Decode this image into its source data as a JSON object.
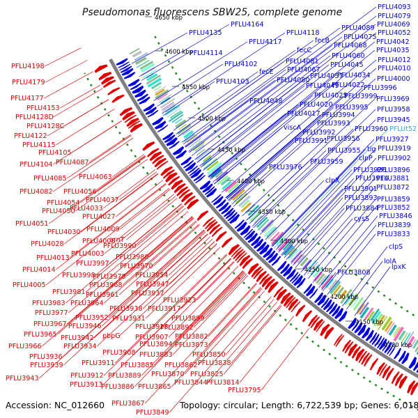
{
  "title": "Pseudomonas fluorescens SBW25, complete genome",
  "footer": {
    "accession": "Accession: NC_012660",
    "summary": "Topology: circular; Length: 6,722,539 bp; Genes: 6,018"
  },
  "colors": {
    "forward_strand": "#e00000",
    "reverse_strand": "#0000dd",
    "trna_label": "#33aadd",
    "backbone": "#808080",
    "dotted_ring": "#228822"
  },
  "ruler_ticks": [
    "4650 kbp",
    "4600 kbp",
    "4550 kbp",
    "4500 kbp",
    "4450 kbp",
    "4400 kbp",
    "4350 kbp",
    "4300 kbp",
    "4250 kbp",
    "4200 kbp",
    "4150 kbp",
    "4100 kbp"
  ],
  "left_labels": [
    "PFLU4198",
    "PFLU4179",
    "PFLU4177",
    "PFLU4153",
    "PFLU4128D",
    "PFLU4128C",
    "PFLU4122",
    "PFLU4115",
    "PFLU4105",
    "PFLU4104",
    "PFLU4087",
    "PFLU4085",
    "PFLU4063",
    "PFLU4082",
    "PFLU4056",
    "PFLU4037",
    "PFLU4054",
    "PFLU4033",
    "PFLU4050",
    "PFLU4027",
    "PFLU4051",
    "PFLU4009",
    "PFLU4030",
    "PFLU4008",
    "arnT",
    "PFLU4028",
    "PFLU3990",
    "PFLU4003",
    "PFLU4013",
    "PFLU3980",
    "PFLU3997",
    "PFLU3970",
    "PFLU4014",
    "PFLU3998",
    "PFLU3978",
    "PFLU3954",
    "PFLU4005",
    "PFLU3968",
    "PFLU3947",
    "PFLU3981",
    "PFLU3961",
    "PFLU3937",
    "PFLU3983",
    "PFLU3964",
    "PFLU3923",
    "PFLU3938",
    "PFLU3917",
    "PFLU3977",
    "PFLU3952",
    "PFLU3931",
    "PFLU3899",
    "PFLU3967",
    "PFLU3946",
    "PFLU3918",
    "PFLU3892",
    "PFLU3965",
    "PFLU3942",
    "PFLU3907",
    "PFLU3882",
    "PFLU3966",
    "pbpG",
    "PFLU3894",
    "PFLU3873",
    "PFLU3934",
    "PFLU3908",
    "PFLU3883",
    "PFLU3936",
    "PFLU3850",
    "PFLU3939",
    "PFLU3911",
    "PFLU3885",
    "PFLU3862",
    "PFLU3838",
    "PFLU3912",
    "PFLU3889",
    "PFLU3870",
    "PFLU3943",
    "PFLU3913",
    "PFLU3825",
    "PFLU3886",
    "PFLU3865",
    "PFLU3844",
    "PFLU3814",
    "PFLU3795",
    "PFLU3867",
    "PFLU3849"
  ],
  "right_labels": [
    "PFLU4164",
    "PFLU4093",
    "PFLU4079",
    "PFLU4135",
    "PFLU4118",
    "PFLU4089",
    "PFLU4069",
    "fecB",
    "PFLU4075",
    "PFLU4052",
    "PFLU4117",
    "PFLU4068",
    "PFLU4042",
    "PFLU4114",
    "fecC",
    "PFLU4035",
    "PFLU4060",
    "PFLU4102",
    "PFLU4081",
    "PFLU4012",
    "fecE",
    "PFLU4067",
    "PFLU4045",
    "PFLU4010",
    "PFLU4080",
    "PFLU4057",
    "PFLU4034",
    "PFLU4103",
    "PFLU4049",
    "PFLU4022",
    "PFLU4000",
    "PFLU3996",
    "PFLU4025",
    "PFLU3999",
    "PFLU4048",
    "PFLU4020",
    "PFLU3969",
    "PFLU3995",
    "PFLU4017",
    "PFLU3994",
    "PFLU3958",
    "PFLU3993",
    "PFLU3945",
    "viscA",
    "PFLU3992",
    "PFLU3960",
    "PFLUt52",
    "PFLU3991",
    "PFLU3956",
    "PFLU3927",
    "tig",
    "PFLU3919",
    "PFLU3955",
    "PFLU3976",
    "PFLU3959",
    "clpP",
    "PFLU3902",
    "PFLU3926",
    "PFLU3896",
    "clpX",
    "PFLU3914",
    "PFLU3881",
    "PFLU3872",
    "PFLU3901",
    "PFLU3893",
    "PFLU3859",
    "PFLU3884",
    "PFLU3852",
    "cysS",
    "PFLU3846",
    "PFLU3839",
    "PFLU3833",
    "clpS",
    "lolA",
    "lpxK",
    "PFLU3808"
  ]
}
